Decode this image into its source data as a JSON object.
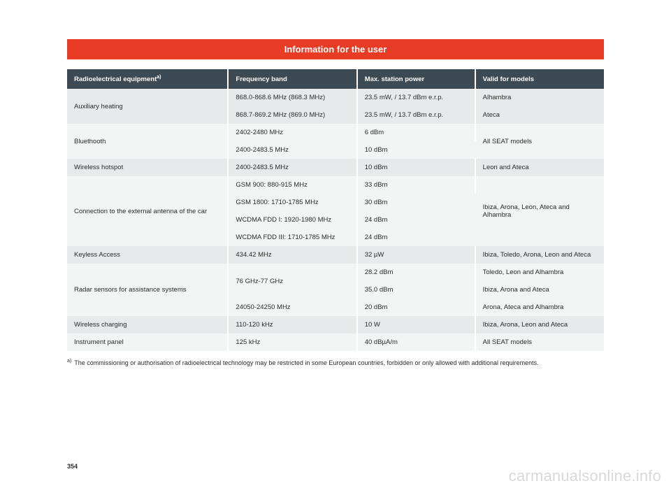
{
  "title": "Information for the user",
  "columns": [
    "Radioelectrical equipment",
    "Frequency band",
    "Max. station power",
    "Valid for models"
  ],
  "header_sup": "a)",
  "rows": {
    "r0c0": "Auxiliary heating",
    "r0c1": "868.0-868.6 MHz (868.3 MHz)",
    "r0c2": "23.5 mW, / 13.7 dBm e.r.p.",
    "r0c3": "Alhambra",
    "r1c1": "868.7-869.2 MHz (869.0 MHz)",
    "r1c2": "23.5 mW, / 13.7 dBm e.r.p.",
    "r1c3": "Ateca",
    "r2c0": "Bluethooth",
    "r2c1": "2402-2480 MHz",
    "r2c2": "6 dBm",
    "r2c3": "All SEAT models",
    "r3c1": "2400-2483.5 MHz",
    "r3c2": "10 dBm",
    "r4c0": "Wireless hotspot",
    "r4c1": "2400-2483.5 MHz",
    "r4c2": "10 dBm",
    "r4c3": "Leon and Ateca",
    "r5c0": "Connection to the external antenna of the car",
    "r5c1": "GSM 900: 880-915 MHz",
    "r5c2": "33 dBm",
    "r5c3": "Ibiza, Arona, Leon, Ateca and Alhambra",
    "r6c1": "GSM 1800: 1710-1785 MHz",
    "r6c2": "30 dBm",
    "r7c1": "WCDMA FDD I: 1920-1980 MHz",
    "r7c2": "24 dBm",
    "r8c1": "WCDMA FDD III: 1710-1785 MHz",
    "r8c2": "24 dBm",
    "r9c0": "Keyless Access",
    "r9c1": "434.42 MHz",
    "r9c2": "32 µW",
    "r9c3": "Ibiza, Toledo, Arona, Leon and Ateca",
    "r10c0": "Radar sensors for assistance systems",
    "r10c1": "76 GHz-77 GHz",
    "r10c2": "28.2 dBm",
    "r10c3": "Toledo, Leon and Alhambra",
    "r11c2": "35.0 dBm",
    "r11c3": "Ibiza, Arona and Ateca",
    "r12c1": "24050-24250 MHz",
    "r12c2": "20 dBm",
    "r12c3": "Arona, Ateca and Alhambra",
    "r13c0": "Wireless charging",
    "r13c1": "110-120 kHz",
    "r13c2": "10 W",
    "r13c3": "Ibiza, Arona, Leon and Ateca",
    "r14c0": "Instrument panel",
    "r14c1": "125 kHz",
    "r14c2": "40 dBµA/m",
    "r14c3": "All SEAT models"
  },
  "footnote_sup": "a)",
  "footnote": "The commissioning or authorisation of radioelectrical technology may be restricted in some European countries, forbidden or only allowed with additional requirements.",
  "page_number": "354",
  "watermark": "carmanualsonline.info",
  "colors": {
    "accent": "#ea3b24",
    "header_bg": "#3e4a53",
    "band_a": "#e8e9ea",
    "band_b": "#f3f4f4",
    "watermark": "#d9d9d9"
  }
}
